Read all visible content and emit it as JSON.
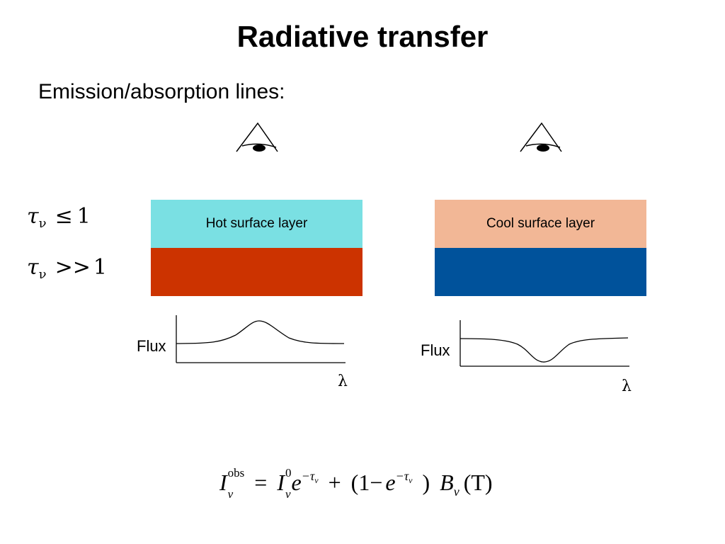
{
  "title": "Radiative transfer",
  "subtitle": "Emission/absorption lines:",
  "optical_depth": {
    "thin": {
      "symbol": "τ",
      "sub": "ν",
      "relation": "≤",
      "value": "1"
    },
    "thick": {
      "symbol": "τ",
      "sub": "ν",
      "relation": ">>",
      "value": "1"
    }
  },
  "panels": [
    {
      "surface_label": "Hot surface layer",
      "surface_color": "#7ae0e3",
      "deep_color": "#cc3300",
      "flux_label": "Flux",
      "x_label": "λ",
      "line_profile": "emission"
    },
    {
      "surface_label": "Cool surface layer",
      "surface_color": "#f2b796",
      "deep_color": "#00529b",
      "flux_label": "Flux",
      "x_label": "λ",
      "line_profile": "absorption"
    }
  ],
  "equation": {
    "lhs_symbol": "I",
    "lhs_sup": "obs",
    "lhs_sub": "ν",
    "equals": "=",
    "term1_symbol": "I",
    "term1_sup": "0",
    "term1_sub": "ν",
    "exp_base": "e",
    "exp_power": "−τ",
    "exp_power_sub": "ν",
    "plus": "+",
    "paren_open": "(1",
    "minus": "−",
    "exp2_base": "e",
    "exp2_power": "−τ",
    "exp2_power_sub": "ν",
    "paren_close": ")",
    "source_symbol": "B",
    "source_sub": "ν",
    "source_arg": "(T)"
  }
}
